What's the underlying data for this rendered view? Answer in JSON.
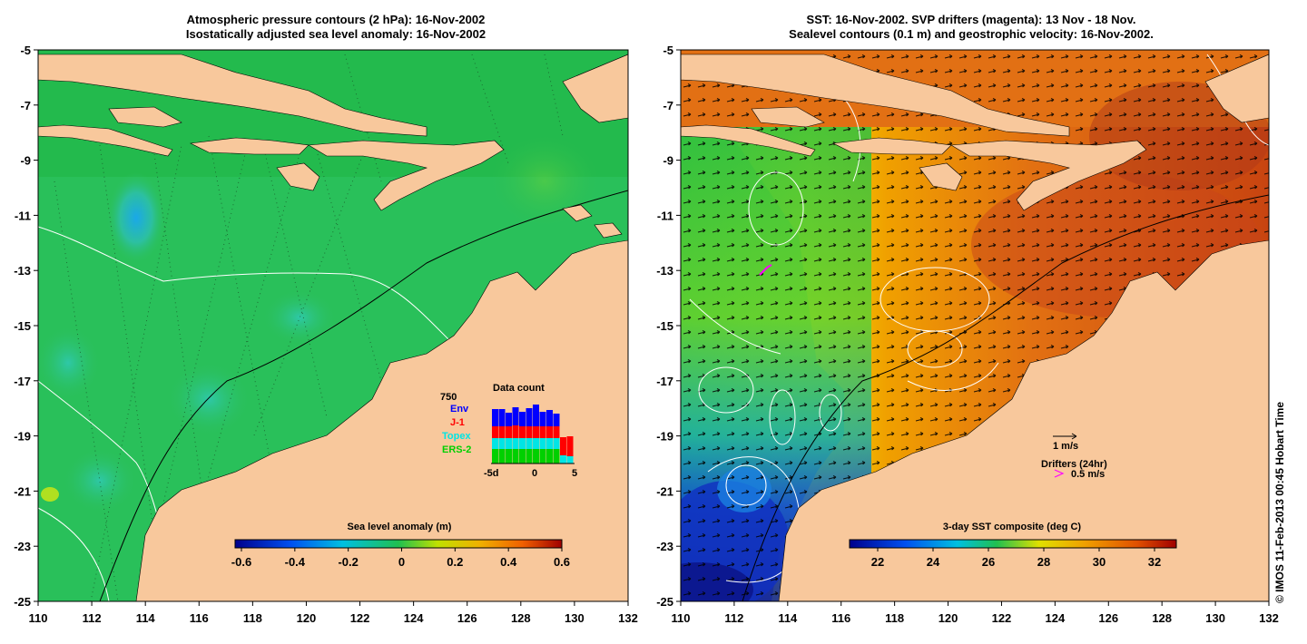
{
  "left_panel": {
    "title_line1": "Atmospheric pressure contours (2 hPa): 16-Nov-2002",
    "title_line2": "Isostatically adjusted sea level anomaly: 16-Nov-2002",
    "colorbar_label": "Sea level anomaly (m)",
    "colorbar_ticks": [
      "-0.6",
      "-0.4",
      "-0.2",
      "0",
      "0.2",
      "0.4",
      "0.6"
    ],
    "data_count": {
      "title": "Data count",
      "max_label": "750",
      "series": [
        {
          "name": "Env",
          "color": "#0000ff"
        },
        {
          "name": "J-1",
          "color": "#ff0000"
        },
        {
          "name": "Topex",
          "color": "#00e5e5"
        },
        {
          "name": "ERS-2",
          "color": "#00d000"
        }
      ],
      "x_ticks": [
        "-5d",
        "0",
        "5"
      ]
    }
  },
  "right_panel": {
    "title_line1": "SST: 16-Nov-2002. SVP drifters (magenta): 13 Nov - 18 Nov.",
    "title_line2": "Sealevel contours (0.1 m) and geostrophic velocity: 16-Nov-2002.",
    "colorbar_label": "3-day SST composite (deg C)",
    "colorbar_ticks": [
      "22",
      "24",
      "26",
      "28",
      "30",
      "32"
    ],
    "vector_scale_label": "1 m/s",
    "drifters_label": "Drifters (24hr)",
    "drifter_scale_label": "0.5 m/s"
  },
  "axes": {
    "lon_ticks": [
      "110",
      "112",
      "114",
      "116",
      "118",
      "120",
      "122",
      "124",
      "126",
      "128",
      "130",
      "132"
    ],
    "lat_ticks": [
      "-5",
      "-7",
      "-9",
      "-11",
      "-13",
      "-15",
      "-17",
      "-19",
      "-21",
      "-23",
      "-25"
    ],
    "lon_range": [
      110,
      132
    ],
    "lat_range": [
      -25,
      -5
    ]
  },
  "copyright": "© IMOS 11-Feb-2013 00:45 Hobart Time",
  "colors": {
    "land": "#f8c89c",
    "sla_ocean": "#1fbe50",
    "sst_warm": "#e06010"
  }
}
